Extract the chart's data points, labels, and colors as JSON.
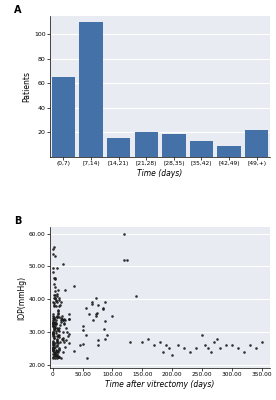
{
  "bar_categories": [
    "(0,7)",
    "[7,14)",
    "[14,21)",
    "[21,28)",
    "[28,35)",
    "[35,42)",
    "[42,49)",
    "[49,+)"
  ],
  "bar_values": [
    65,
    110,
    15,
    20,
    19,
    13,
    9,
    22
  ],
  "bar_color": "#4472a8",
  "bar_xlabel": "Time (days)",
  "bar_ylabel": "Patients",
  "bar_ylim": [
    0,
    115
  ],
  "bar_yticks": [
    20,
    40,
    60,
    80,
    100
  ],
  "scatter_xlabel": "Time after vitrectomy (days)",
  "scatter_ylabel": "IOP(mmHg)",
  "scatter_xlim": [
    -5,
    365
  ],
  "scatter_ylim": [
    19,
    62
  ],
  "scatter_xticks": [
    0,
    50,
    100,
    150,
    200,
    250,
    300,
    350
  ],
  "scatter_yticks": [
    20,
    30,
    40,
    50,
    60
  ],
  "scatter_color": "#1a1a1a",
  "bg_color": "#e8ecf2",
  "label_A": "A",
  "label_B": "B"
}
